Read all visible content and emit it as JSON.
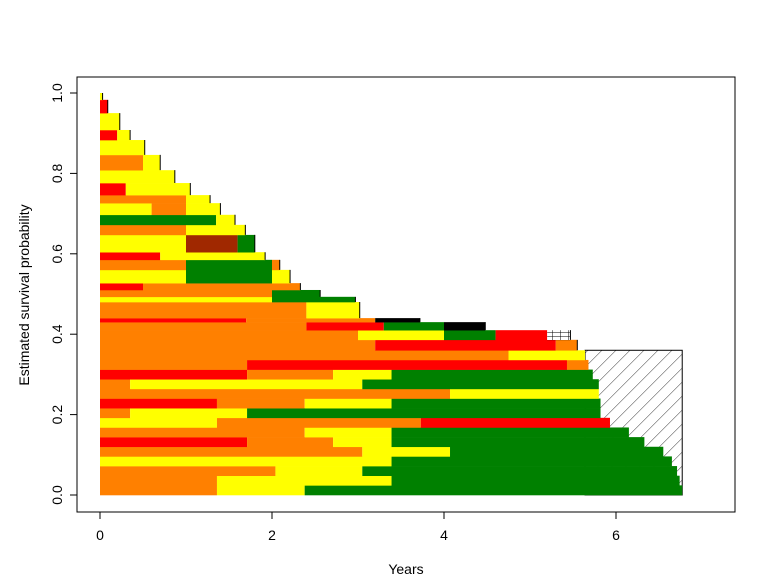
{
  "chart_data": {
    "type": "area",
    "title": "",
    "xlabel": "Years",
    "ylabel": "Estimated survival probability",
    "xlim": [
      0,
      7.35
    ],
    "ylim": [
      0,
      1.0
    ],
    "x_ticks": [
      "0",
      "2",
      "4",
      "6"
    ],
    "x_tick_values": [
      0,
      2,
      4,
      6
    ],
    "y_ticks": [
      "0.0",
      "0.2",
      "0.4",
      "0.6",
      "0.8",
      "1.0"
    ],
    "y_tick_values": [
      0,
      0.2,
      0.4,
      0.6,
      0.8,
      1.0
    ],
    "colors": {
      "O": "#ff8000",
      "Y": "#ffff00",
      "R": "#ff0000",
      "G": "#008000",
      "K": "#000000",
      "B": "#a02800"
    },
    "censored_region": {
      "x": [
        5.64,
        6.77
      ],
      "y": [
        0,
        0.36
      ],
      "pattern": "diagonal-hatch"
    },
    "rows": [
      {
        "y": [
          0.0,
          0.024
        ],
        "segments": [
          [
            0,
            1.36,
            "O"
          ],
          [
            1.36,
            2.38,
            "Y"
          ],
          [
            2.38,
            6.77,
            "G"
          ]
        ]
      },
      {
        "y": [
          0.024,
          0.048
        ],
        "segments": [
          [
            0,
            1.36,
            "O"
          ],
          [
            1.36,
            3.39,
            "Y"
          ],
          [
            3.39,
            6.74,
            "G"
          ]
        ]
      },
      {
        "y": [
          0.048,
          0.072
        ],
        "segments": [
          [
            0,
            2.04,
            "O"
          ],
          [
            2.04,
            3.05,
            "Y"
          ],
          [
            3.05,
            6.71,
            "G"
          ]
        ]
      },
      {
        "y": [
          0.072,
          0.096
        ],
        "segments": [
          [
            0,
            3.39,
            "Y"
          ],
          [
            3.39,
            6.65,
            "G"
          ]
        ]
      },
      {
        "y": [
          0.096,
          0.12
        ],
        "segments": [
          [
            0,
            3.05,
            "O"
          ],
          [
            3.05,
            4.07,
            "Y"
          ],
          [
            4.07,
            6.55,
            "G"
          ]
        ]
      },
      {
        "y": [
          0.12,
          0.144
        ],
        "segments": [
          [
            0,
            1.71,
            "R"
          ],
          [
            1.71,
            2.71,
            "O"
          ],
          [
            2.71,
            3.39,
            "Y"
          ],
          [
            3.39,
            6.33,
            "G"
          ]
        ]
      },
      {
        "y": [
          0.144,
          0.168
        ],
        "segments": [
          [
            0,
            2.38,
            "O"
          ],
          [
            2.38,
            3.39,
            "Y"
          ],
          [
            3.39,
            6.15,
            "G"
          ]
        ]
      },
      {
        "y": [
          0.168,
          0.192
        ],
        "segments": [
          [
            0,
            1.36,
            "Y"
          ],
          [
            1.36,
            3.73,
            "O"
          ],
          [
            3.73,
            5.93,
            "R"
          ]
        ]
      },
      {
        "y": [
          0.192,
          0.216
        ],
        "segments": [
          [
            0,
            0.35,
            "O"
          ],
          [
            0.35,
            1.71,
            "Y"
          ],
          [
            1.71,
            5.82,
            "G"
          ]
        ]
      },
      {
        "y": [
          0.216,
          0.24
        ],
        "segments": [
          [
            0,
            1.36,
            "R"
          ],
          [
            1.36,
            2.38,
            "O"
          ],
          [
            2.38,
            3.39,
            "Y"
          ],
          [
            3.39,
            5.82,
            "G"
          ]
        ]
      },
      {
        "y": [
          0.24,
          0.264
        ],
        "segments": [
          [
            0,
            4.07,
            "O"
          ],
          [
            4.07,
            5.8,
            "Y"
          ]
        ]
      },
      {
        "y": [
          0.264,
          0.288
        ],
        "segments": [
          [
            0,
            0.35,
            "O"
          ],
          [
            0.35,
            3.05,
            "Y"
          ],
          [
            3.05,
            5.8,
            "G"
          ]
        ]
      },
      {
        "y": [
          0.288,
          0.312
        ],
        "segments": [
          [
            0,
            1.71,
            "R"
          ],
          [
            1.71,
            2.71,
            "O"
          ],
          [
            2.71,
            3.39,
            "Y"
          ],
          [
            3.39,
            5.73,
            "G"
          ]
        ]
      },
      {
        "y": [
          0.312,
          0.336
        ],
        "segments": [
          [
            0,
            1.71,
            "O"
          ],
          [
            1.71,
            5.43,
            "R"
          ],
          [
            5.43,
            5.68,
            "O"
          ]
        ]
      },
      {
        "y": [
          0.336,
          0.36
        ],
        "segments": [
          [
            0,
            4.75,
            "O"
          ],
          [
            4.75,
            5.64,
            "Y"
          ]
        ]
      },
      {
        "y": [
          0.36,
          0.386
        ],
        "segments": [
          [
            0,
            3.2,
            "O"
          ],
          [
            3.2,
            5.3,
            "R"
          ],
          [
            5.3,
            5.55,
            "O"
          ]
        ]
      },
      {
        "y": [
          0.386,
          0.41
        ],
        "segments": [
          [
            0,
            3.0,
            "O"
          ],
          [
            3.0,
            4.0,
            "Y"
          ],
          [
            4.0,
            4.6,
            "G"
          ],
          [
            4.6,
            5.2,
            "R"
          ],
          [
            5.2,
            5.47,
            "grid"
          ]
        ]
      },
      {
        "y": [
          0.41,
          0.43
        ],
        "segments": [
          [
            0,
            2.4,
            "O"
          ],
          [
            2.4,
            3.3,
            "R"
          ],
          [
            3.3,
            4.0,
            "G"
          ],
          [
            4.0,
            4.48,
            "K"
          ]
        ]
      },
      {
        "y": [
          0.43,
          0.44
        ],
        "segments": [
          [
            0,
            1.7,
            "R"
          ],
          [
            1.7,
            3.2,
            "O"
          ],
          [
            3.2,
            3.72,
            "K"
          ]
        ]
      },
      {
        "y": [
          0.44,
          0.48
        ],
        "segments": [
          [
            0,
            2.4,
            "O"
          ],
          [
            2.4,
            3.02,
            "Y"
          ]
        ]
      },
      {
        "y": [
          0.48,
          0.493
        ],
        "segments": [
          [
            0,
            2.0,
            "Y"
          ],
          [
            2.0,
            2.97,
            "G"
          ]
        ]
      },
      {
        "y": [
          0.493,
          0.51
        ],
        "segments": [
          [
            0,
            2.0,
            "O"
          ],
          [
            2.0,
            2.56,
            "G"
          ]
        ]
      },
      {
        "y": [
          0.51,
          0.527
        ],
        "segments": [
          [
            0,
            0.5,
            "R"
          ],
          [
            0.5,
            2.33,
            "O"
          ]
        ]
      },
      {
        "y": [
          0.527,
          0.56
        ],
        "segments": [
          [
            0,
            1.0,
            "Y"
          ],
          [
            1.0,
            2.0,
            "G"
          ],
          [
            2.0,
            2.21,
            "Y"
          ]
        ]
      },
      {
        "y": [
          0.56,
          0.585
        ],
        "segments": [
          [
            0,
            1.0,
            "O"
          ],
          [
            1.0,
            2.0,
            "G"
          ],
          [
            2.0,
            2.09,
            "O"
          ]
        ]
      },
      {
        "y": [
          0.585,
          0.604
        ],
        "segments": [
          [
            0,
            0.7,
            "R"
          ],
          [
            0.7,
            1.92,
            "Y"
          ]
        ]
      },
      {
        "y": [
          0.604,
          0.647
        ],
        "segments": [
          [
            0,
            1.0,
            "Y"
          ],
          [
            1.0,
            1.6,
            "B"
          ],
          [
            1.6,
            1.8,
            "G"
          ]
        ]
      },
      {
        "y": [
          0.647,
          0.672
        ],
        "segments": [
          [
            0,
            1.0,
            "O"
          ],
          [
            1.0,
            1.69,
            "Y"
          ]
        ]
      },
      {
        "y": [
          0.672,
          0.697
        ],
        "segments": [
          [
            0,
            1.35,
            "G"
          ],
          [
            1.35,
            1.57,
            "Y"
          ]
        ]
      },
      {
        "y": [
          0.697,
          0.726
        ],
        "segments": [
          [
            0,
            0.6,
            "Y"
          ],
          [
            0.6,
            1.0,
            "O"
          ],
          [
            1.0,
            1.4,
            "Y"
          ]
        ]
      },
      {
        "y": [
          0.726,
          0.746
        ],
        "segments": [
          [
            0,
            1.0,
            "O"
          ],
          [
            1.0,
            1.28,
            "Y"
          ]
        ]
      },
      {
        "y": [
          0.746,
          0.776
        ],
        "segments": [
          [
            0,
            0.3,
            "R"
          ],
          [
            0.3,
            1.05,
            "Y"
          ]
        ]
      },
      {
        "y": [
          0.776,
          0.808
        ],
        "segments": [
          [
            0,
            0.87,
            "Y"
          ]
        ]
      },
      {
        "y": [
          0.808,
          0.846
        ],
        "segments": [
          [
            0,
            0.5,
            "O"
          ],
          [
            0.5,
            0.7,
            "Y"
          ]
        ]
      },
      {
        "y": [
          0.846,
          0.883
        ],
        "segments": [
          [
            0,
            0.52,
            "Y"
          ]
        ]
      },
      {
        "y": [
          0.883,
          0.908
        ],
        "segments": [
          [
            0,
            0.2,
            "R"
          ],
          [
            0.2,
            0.35,
            "Y"
          ]
        ]
      },
      {
        "y": [
          0.908,
          0.95
        ],
        "segments": [
          [
            0,
            0.23,
            "Y"
          ]
        ]
      },
      {
        "y": [
          0.95,
          0.983
        ],
        "segments": [
          [
            0,
            0.09,
            "R"
          ]
        ]
      },
      {
        "y": [
          0.983,
          1.0
        ],
        "segments": [
          [
            0,
            0.03,
            "Y"
          ]
        ]
      }
    ]
  }
}
